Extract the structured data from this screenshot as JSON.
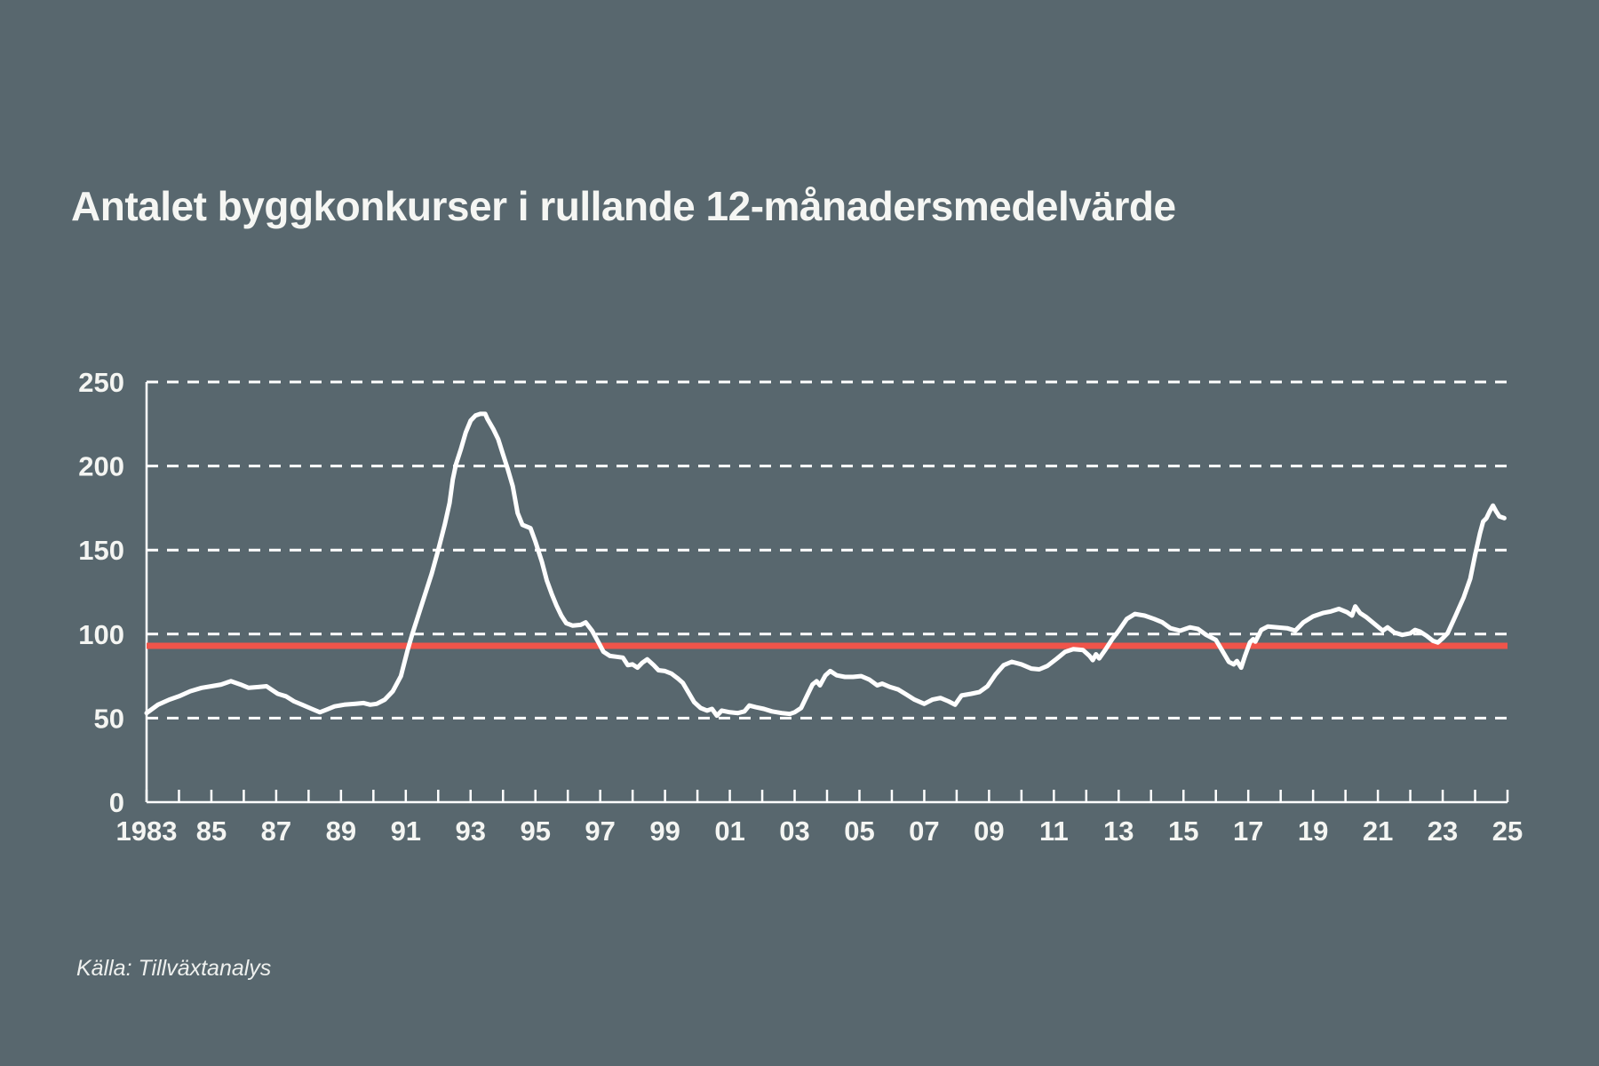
{
  "title": "Antalet byggkonkurser i rullande 12-månadersmedelvärde",
  "source": "Källa: Tillväxtanalys",
  "colors": {
    "background": "#58676E",
    "series_line": "#FFFFFF",
    "reference_line": "#F0544A",
    "grid": "#FFFFFF",
    "text": "#F4F5F2"
  },
  "chart_data": {
    "type": "line",
    "title": "Antalet byggkonkurser i rullande 12-månadersmedelvärde",
    "xlabel": "",
    "ylabel": "",
    "x_axis": {
      "range": [
        1983,
        2025
      ],
      "tick_interval_years": 1,
      "labeled_years": [
        1983,
        1985,
        1987,
        1989,
        1991,
        1993,
        1995,
        1997,
        1999,
        2001,
        2003,
        2005,
        2007,
        2009,
        2011,
        2013,
        2015,
        2017,
        2019,
        2021,
        2023,
        2025
      ],
      "labels": [
        "1983",
        "85",
        "87",
        "89",
        "91",
        "93",
        "95",
        "97",
        "99",
        "01",
        "03",
        "05",
        "07",
        "09",
        "11",
        "13",
        "15",
        "17",
        "19",
        "21",
        "23",
        "25"
      ]
    },
    "y_axis": {
      "range": [
        0,
        250
      ],
      "ticks": [
        0,
        50,
        100,
        150,
        200,
        250
      ],
      "gridlines": "dashed"
    },
    "legend": "none",
    "reference_line": {
      "value": 93
    },
    "series": [
      {
        "name": "Byggkonkurser, rullande 12-månadersmedelvärde",
        "points": [
          [
            1983.0,
            53
          ],
          [
            1983.35,
            58
          ],
          [
            1983.7,
            61
          ],
          [
            1984.0,
            63
          ],
          [
            1984.35,
            66
          ],
          [
            1984.7,
            68
          ],
          [
            1985.0,
            69
          ],
          [
            1985.3,
            70
          ],
          [
            1985.6,
            72
          ],
          [
            1985.9,
            70
          ],
          [
            1986.15,
            68
          ],
          [
            1986.45,
            68.5
          ],
          [
            1986.7,
            69
          ],
          [
            1986.85,
            67
          ],
          [
            1987.05,
            64.5
          ],
          [
            1987.3,
            63
          ],
          [
            1987.55,
            60
          ],
          [
            1987.8,
            58
          ],
          [
            1988.1,
            55.5
          ],
          [
            1988.35,
            53.5
          ],
          [
            1988.55,
            55
          ],
          [
            1988.8,
            57
          ],
          [
            1989.1,
            58
          ],
          [
            1989.45,
            58.5
          ],
          [
            1989.7,
            59
          ],
          [
            1989.9,
            58
          ],
          [
            1990.1,
            58.5
          ],
          [
            1990.35,
            61
          ],
          [
            1990.6,
            66
          ],
          [
            1990.85,
            75
          ],
          [
            1991.05,
            90
          ],
          [
            1991.2,
            100
          ],
          [
            1991.4,
            112
          ],
          [
            1991.6,
            124
          ],
          [
            1991.8,
            136
          ],
          [
            1992.0,
            150
          ],
          [
            1992.2,
            165
          ],
          [
            1992.35,
            178
          ],
          [
            1992.45,
            192
          ],
          [
            1992.55,
            201
          ],
          [
            1992.7,
            210
          ],
          [
            1992.85,
            220
          ],
          [
            1993.0,
            227
          ],
          [
            1993.15,
            230
          ],
          [
            1993.3,
            231
          ],
          [
            1993.45,
            231
          ],
          [
            1993.52,
            228
          ],
          [
            1993.7,
            222
          ],
          [
            1993.85,
            216
          ],
          [
            1994.0,
            207
          ],
          [
            1994.15,
            198
          ],
          [
            1994.3,
            188
          ],
          [
            1994.45,
            172
          ],
          [
            1994.6,
            165
          ],
          [
            1994.85,
            163
          ],
          [
            1995.0,
            155
          ],
          [
            1995.2,
            143
          ],
          [
            1995.35,
            132
          ],
          [
            1995.5,
            124
          ],
          [
            1995.65,
            117
          ],
          [
            1995.8,
            111
          ],
          [
            1995.95,
            106.5
          ],
          [
            1996.15,
            105
          ],
          [
            1996.4,
            105.5
          ],
          [
            1996.55,
            107
          ],
          [
            1996.75,
            102
          ],
          [
            1996.95,
            95
          ],
          [
            1997.1,
            89.5
          ],
          [
            1997.3,
            87
          ],
          [
            1997.5,
            86.5
          ],
          [
            1997.7,
            86
          ],
          [
            1997.85,
            81.5
          ],
          [
            1998.0,
            82
          ],
          [
            1998.15,
            80
          ],
          [
            1998.3,
            83
          ],
          [
            1998.45,
            85
          ],
          [
            1998.65,
            81.5
          ],
          [
            1998.8,
            78.5
          ],
          [
            1999.0,
            78
          ],
          [
            1999.2,
            76.5
          ],
          [
            1999.4,
            73.5
          ],
          [
            1999.55,
            71
          ],
          [
            1999.7,
            66
          ],
          [
            1999.9,
            59.5
          ],
          [
            2000.1,
            56
          ],
          [
            2000.3,
            54.5
          ],
          [
            2000.45,
            55.5
          ],
          [
            2000.6,
            51.5
          ],
          [
            2000.75,
            54.5
          ],
          [
            2001.0,
            53.5
          ],
          [
            2001.25,
            53
          ],
          [
            2001.45,
            54
          ],
          [
            2001.6,
            57.5
          ],
          [
            2001.8,
            56.5
          ],
          [
            2002.05,
            55.5
          ],
          [
            2002.3,
            54
          ],
          [
            2002.6,
            53
          ],
          [
            2002.85,
            52.5
          ],
          [
            2003.0,
            53.5
          ],
          [
            2003.2,
            56
          ],
          [
            2003.4,
            64
          ],
          [
            2003.55,
            70
          ],
          [
            2003.68,
            72
          ],
          [
            2003.78,
            69.5
          ],
          [
            2003.95,
            75.5
          ],
          [
            2004.1,
            78
          ],
          [
            2004.3,
            75.5
          ],
          [
            2004.55,
            74.5
          ],
          [
            2004.8,
            74.5
          ],
          [
            2005.05,
            75
          ],
          [
            2005.3,
            73
          ],
          [
            2005.55,
            69.5
          ],
          [
            2005.7,
            70.5
          ],
          [
            2005.95,
            68.5
          ],
          [
            2006.2,
            67
          ],
          [
            2006.45,
            64
          ],
          [
            2006.7,
            61
          ],
          [
            2007.0,
            58.5
          ],
          [
            2007.25,
            61
          ],
          [
            2007.5,
            62
          ],
          [
            2007.75,
            60
          ],
          [
            2007.95,
            58
          ],
          [
            2008.15,
            63.5
          ],
          [
            2008.45,
            64.5
          ],
          [
            2008.7,
            65.5
          ],
          [
            2008.95,
            69
          ],
          [
            2009.2,
            76
          ],
          [
            2009.45,
            81.5
          ],
          [
            2009.7,
            83.5
          ],
          [
            2010.0,
            82
          ],
          [
            2010.3,
            79.5
          ],
          [
            2010.55,
            79
          ],
          [
            2010.8,
            81
          ],
          [
            2011.1,
            85.5
          ],
          [
            2011.35,
            89.5
          ],
          [
            2011.6,
            91
          ],
          [
            2011.9,
            90.5
          ],
          [
            2012.1,
            87
          ],
          [
            2012.2,
            84.5
          ],
          [
            2012.3,
            88
          ],
          [
            2012.4,
            85.5
          ],
          [
            2012.6,
            91
          ],
          [
            2012.8,
            97
          ],
          [
            2013.0,
            102
          ],
          [
            2013.25,
            109
          ],
          [
            2013.5,
            112
          ],
          [
            2013.8,
            111
          ],
          [
            2014.1,
            109
          ],
          [
            2014.35,
            107
          ],
          [
            2014.6,
            103.5
          ],
          [
            2014.9,
            102
          ],
          [
            2015.2,
            104
          ],
          [
            2015.45,
            103
          ],
          [
            2015.7,
            99.5
          ],
          [
            2016.0,
            96.5
          ],
          [
            2016.2,
            90
          ],
          [
            2016.4,
            83.5
          ],
          [
            2016.55,
            82
          ],
          [
            2016.65,
            84
          ],
          [
            2016.78,
            80
          ],
          [
            2016.9,
            87
          ],
          [
            2017.05,
            95
          ],
          [
            2017.15,
            97
          ],
          [
            2017.22,
            95.5
          ],
          [
            2017.4,
            102.5
          ],
          [
            2017.6,
            104.5
          ],
          [
            2017.9,
            104
          ],
          [
            2018.2,
            103.5
          ],
          [
            2018.45,
            102
          ],
          [
            2018.7,
            107
          ],
          [
            2019.0,
            110.5
          ],
          [
            2019.3,
            112.5
          ],
          [
            2019.55,
            113.5
          ],
          [
            2019.8,
            115
          ],
          [
            2020.05,
            113
          ],
          [
            2020.2,
            111
          ],
          [
            2020.3,
            116.5
          ],
          [
            2020.45,
            112.5
          ],
          [
            2020.65,
            110
          ],
          [
            2020.9,
            106
          ],
          [
            2021.15,
            102
          ],
          [
            2021.3,
            104
          ],
          [
            2021.5,
            101
          ],
          [
            2021.75,
            99.5
          ],
          [
            2022.0,
            100.5
          ],
          [
            2022.15,
            102.5
          ],
          [
            2022.3,
            101.5
          ],
          [
            2022.5,
            99
          ],
          [
            2022.7,
            96
          ],
          [
            2022.85,
            95
          ],
          [
            2023.0,
            97.5
          ],
          [
            2023.15,
            100.5
          ],
          [
            2023.4,
            111
          ],
          [
            2023.65,
            122
          ],
          [
            2023.85,
            133
          ],
          [
            2024.0,
            147
          ],
          [
            2024.15,
            160
          ],
          [
            2024.25,
            167
          ],
          [
            2024.35,
            169
          ],
          [
            2024.45,
            173
          ],
          [
            2024.55,
            176.5
          ],
          [
            2024.65,
            173
          ],
          [
            2024.75,
            170
          ],
          [
            2024.9,
            169
          ]
        ]
      }
    ]
  }
}
